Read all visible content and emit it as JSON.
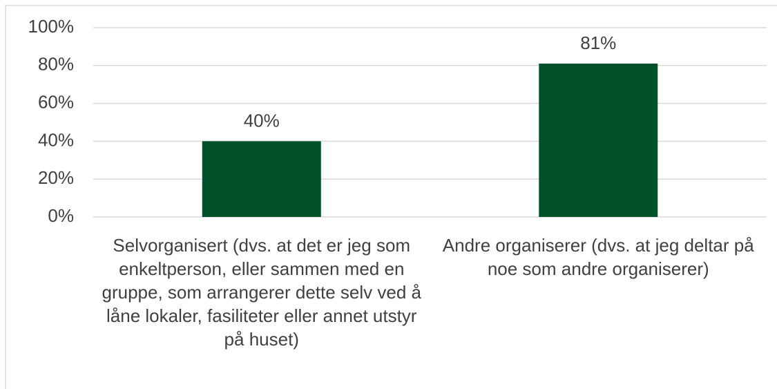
{
  "chart_data": {
    "type": "bar",
    "categories": [
      "Selvorganisert (dvs. at det er jeg som enkeltperson, eller sammen med en gruppe, som arrangerer dette selv ved å låne lokaler, fasiliteter eller annet utstyr på huset)",
      "Andre organiserer (dvs. at jeg deltar på noe som andre organiserer)"
    ],
    "values": [
      40,
      81
    ],
    "value_labels": [
      "40%",
      "81%"
    ],
    "color": "#00502a",
    "ylim": [
      0,
      100
    ],
    "yticks": [
      {
        "value": 0,
        "label": "0%"
      },
      {
        "value": 20,
        "label": "20%"
      },
      {
        "value": 40,
        "label": "40%"
      },
      {
        "value": 60,
        "label": "60%"
      },
      {
        "value": 80,
        "label": "80%"
      },
      {
        "value": 100,
        "label": "100%"
      }
    ],
    "grid": true
  }
}
